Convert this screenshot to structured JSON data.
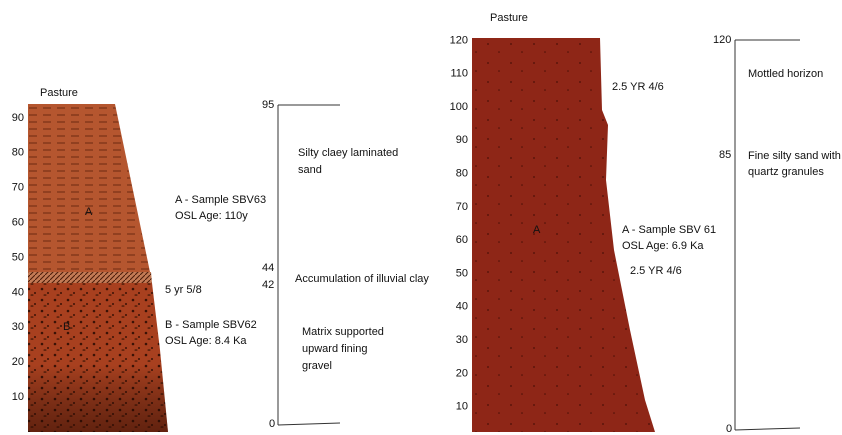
{
  "left_profile": {
    "surface": "Pasture",
    "depth_ticks": [
      10,
      20,
      30,
      40,
      50,
      60,
      70,
      80,
      90
    ],
    "sample_marks": [
      "A",
      "B"
    ],
    "notes": [
      [
        "A - Sample SBV63",
        "OSL Age: 110y"
      ],
      [
        "5 yr 5/8"
      ],
      [
        "B - Sample SBV62",
        "OSL Age: 8.4 Ka"
      ]
    ]
  },
  "left_log": {
    "depths": [
      95,
      44,
      42,
      0
    ],
    "descriptions": [
      [
        "Silty claey laminated",
        "sand"
      ],
      [
        "Accumulation of illuvial clay"
      ],
      [
        "Matrix supported",
        "upward fining",
        "gravel"
      ]
    ]
  },
  "right_profile": {
    "surface": "Pasture",
    "depth_ticks": [
      10,
      20,
      30,
      40,
      50,
      60,
      70,
      80,
      90,
      100,
      110,
      120
    ],
    "sample_marks": [
      "A"
    ],
    "notes": [
      [
        "2.5 YR 4/6"
      ],
      [
        "A - Sample SBV 61",
        "OSL Age: 6.9 Ka"
      ],
      [
        "2.5 YR 4/6"
      ]
    ]
  },
  "right_log": {
    "depths": [
      120,
      85,
      0
    ],
    "descriptions": [
      [
        "Mottled horizon"
      ],
      [
        "Fine silty sand with",
        "quartz granules"
      ]
    ]
  }
}
